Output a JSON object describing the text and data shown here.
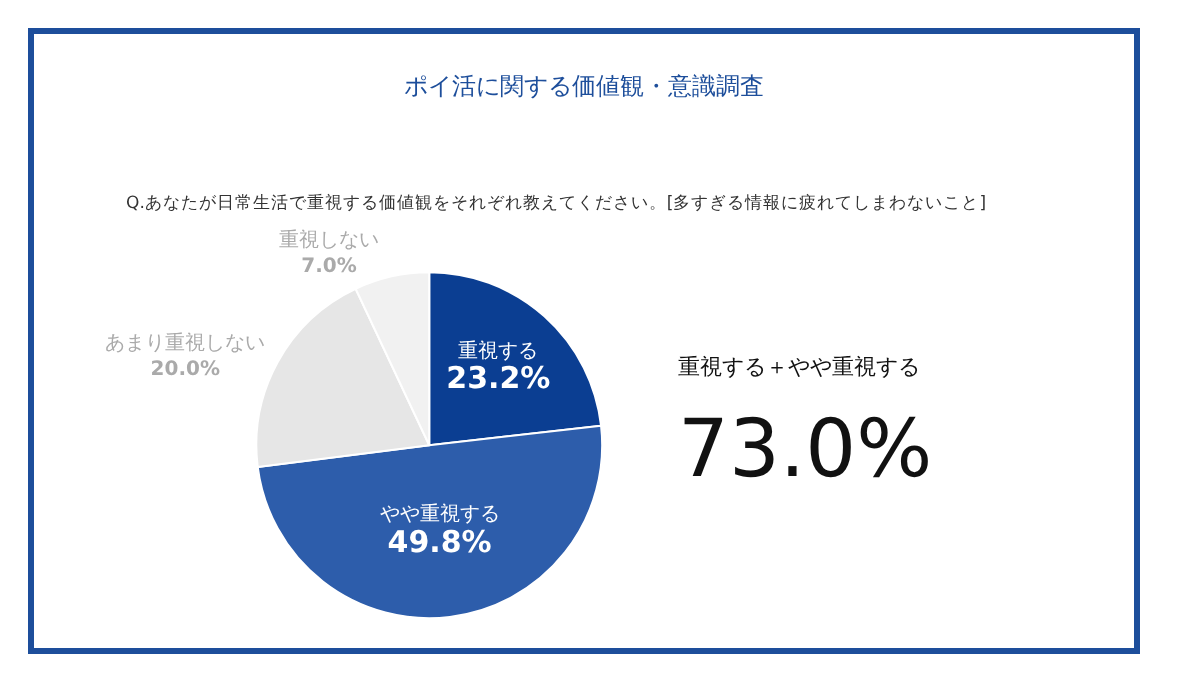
{
  "chart_data": {
    "type": "pie",
    "title": "ポイ活に関する価値観・意識調査",
    "subtitle": "Q.あなたが日常生活で重視する価値観をそれぞれ教えてください。[多すぎる情報に疲れてしまわないこと]",
    "categories": [
      "重視する",
      "やや重視する",
      "あまり重視しない",
      "重視しない"
    ],
    "values": [
      23.2,
      49.8,
      20.0,
      7.0
    ],
    "value_labels": [
      "23.2%",
      "49.8%",
      "20.0%",
      "7.0%"
    ],
    "colors": [
      "#0b3e92",
      "#2d5dab",
      "#e6e6e6",
      "#f1f1f1"
    ],
    "annotations": [
      "重視する＋やや重視する",
      "73.0%"
    ],
    "legend": false
  }
}
